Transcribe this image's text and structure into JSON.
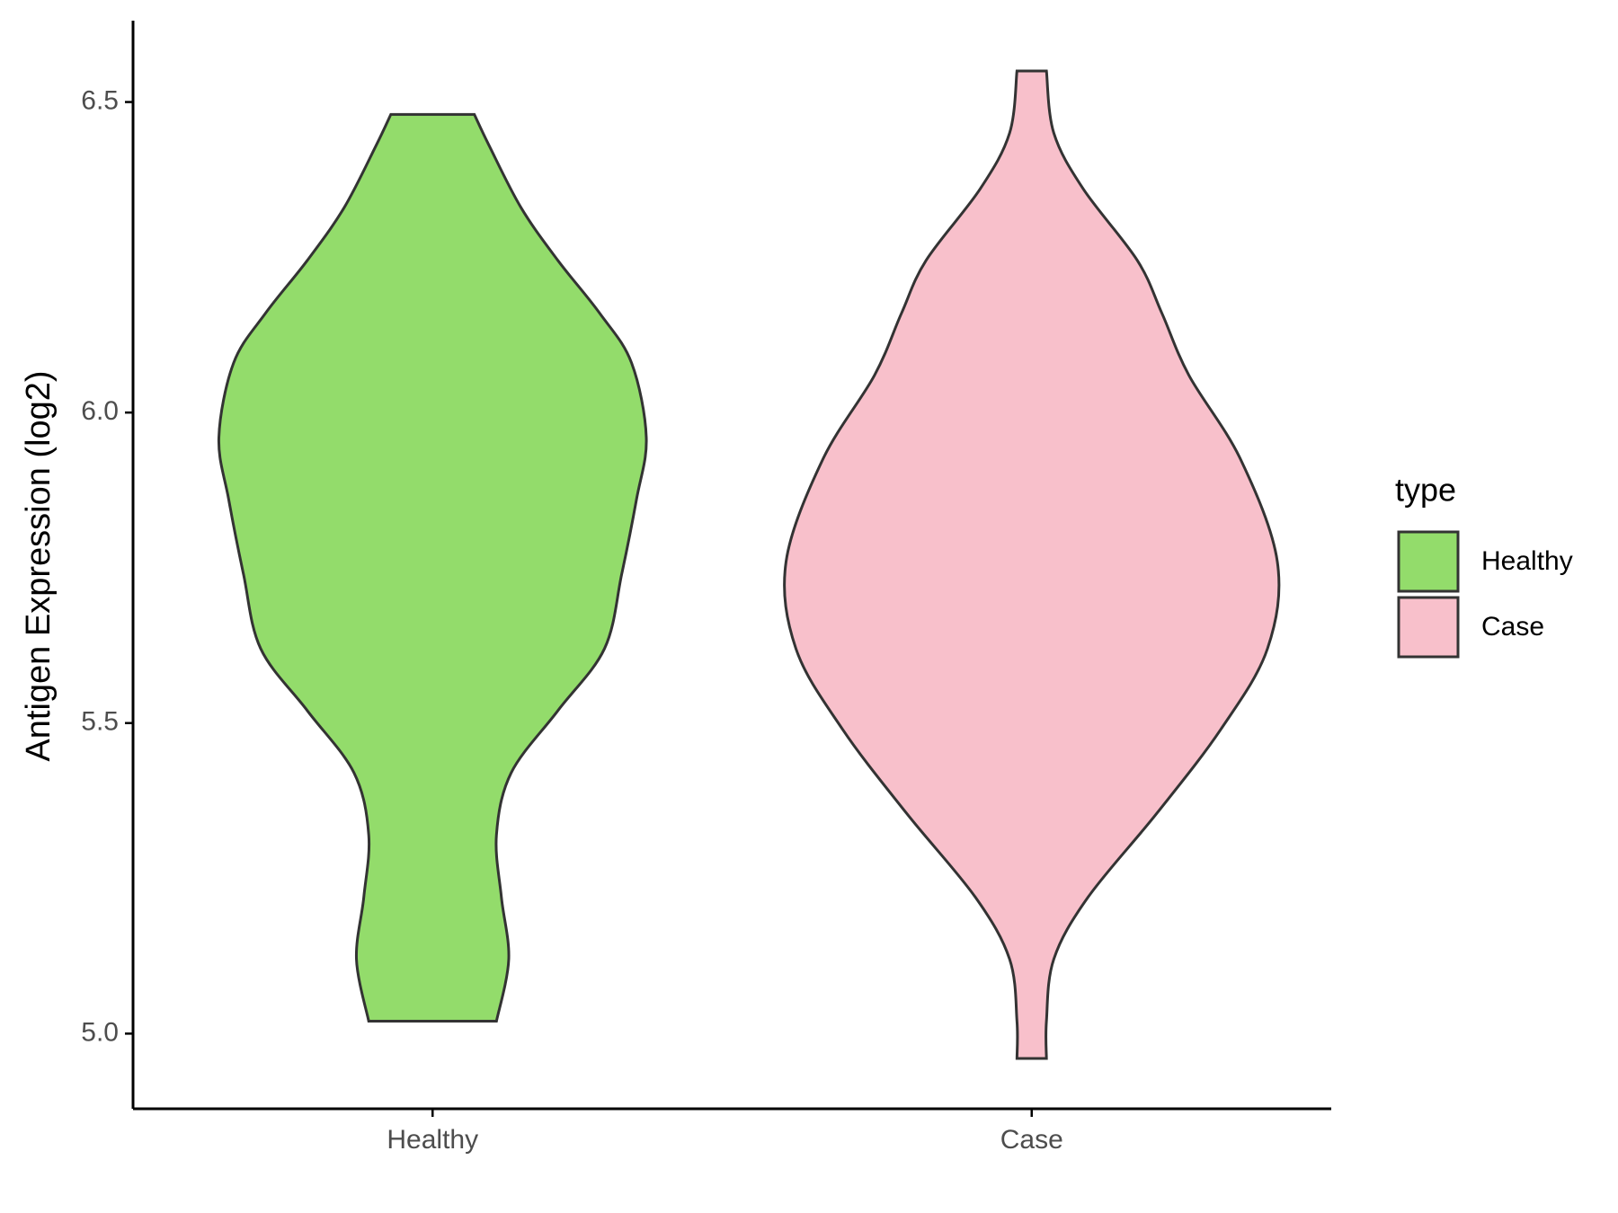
{
  "chart_data": {
    "type": "violin",
    "y_label": "Antigen Expression (log2)",
    "legend_title": "type",
    "categories": [
      "Healthy",
      "Case"
    ],
    "series": [
      {
        "name": "Healthy",
        "color": "#93dc6b",
        "y": [
          6.48,
          6.43,
          6.33,
          6.245,
          6.16,
          6.08,
          5.96,
          5.86,
          5.74,
          5.62,
          5.52,
          5.42,
          5.32,
          5.22,
          5.12,
          5.02
        ],
        "width": [
          0.17,
          0.23,
          0.36,
          0.51,
          0.68,
          0.81,
          0.87,
          0.83,
          0.77,
          0.7,
          0.51,
          0.32,
          0.26,
          0.28,
          0.31,
          0.26
        ]
      },
      {
        "name": "Case",
        "color": "#f8c0cb",
        "y": [
          6.55,
          6.45,
          6.36,
          6.245,
          6.16,
          6.06,
          5.925,
          5.76,
          5.62,
          5.49,
          5.355,
          5.22,
          5.12,
          5.02,
          4.96
        ],
        "width": [
          0.06,
          0.09,
          0.21,
          0.43,
          0.53,
          0.64,
          0.85,
          1.0,
          0.96,
          0.77,
          0.51,
          0.23,
          0.09,
          0.06,
          0.06
        ]
      }
    ],
    "ylim": [
      4.879,
      6.631
    ],
    "yticks": [
      {
        "value": 5,
        "label": "5.0"
      },
      5.5,
      {
        "value": 6,
        "label": "6.0"
      },
      6.5
    ],
    "legend": "right"
  }
}
